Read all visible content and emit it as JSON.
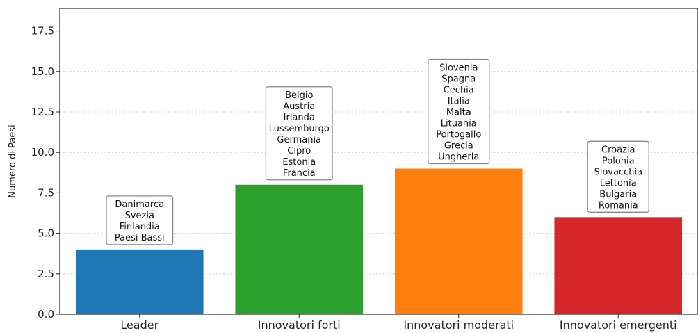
{
  "chart_data": {
    "type": "bar",
    "title": "",
    "xlabel": "",
    "ylabel": "Numero di Paesi",
    "ylim": [
      0,
      18.9
    ],
    "yticks": [
      "0.0",
      "2.5",
      "5.0",
      "7.5",
      "10.0",
      "12.5",
      "15.0",
      "17.5"
    ],
    "grid": "y-dotted",
    "categories": [
      "Leader",
      "Innovatori forti",
      "Innovatori moderati",
      "Innovatori emergenti"
    ],
    "values": [
      4,
      8,
      9,
      6
    ],
    "colors": [
      "#1f77b4",
      "#2ca02c",
      "#ff7f0e",
      "#d62728"
    ],
    "annotations": [
      [
        "Danimarca",
        "Svezia",
        "Finlandia",
        "Paesi Bassi"
      ],
      [
        "Belgio",
        "Austria",
        "Irlanda",
        "Lussemburgo",
        "Germania",
        "Cipro",
        "Estonia",
        "Francia"
      ],
      [
        "Slovenia",
        "Spagna",
        "Cechia",
        "Italia",
        "Malta",
        "Lituania",
        "Portogallo",
        "Grecia",
        "Ungheria"
      ],
      [
        "Croazia",
        "Polonia",
        "Slovacchia",
        "Lettonia",
        "Bulgaria",
        "Romania"
      ]
    ]
  }
}
